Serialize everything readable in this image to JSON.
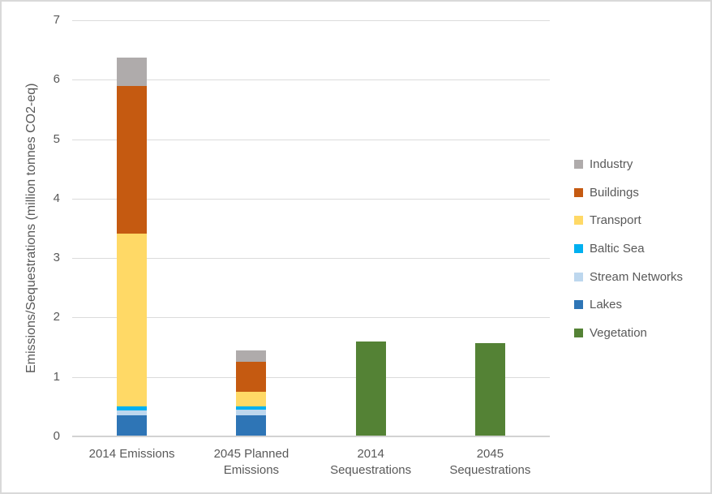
{
  "chart_data": {
    "type": "bar",
    "stacked": true,
    "ylabel": "Emissions/Sequestrations (million tonnes CO2-eq)",
    "ylim": [
      0,
      7
    ],
    "yticks": [
      0,
      1,
      2,
      3,
      4,
      5,
      6,
      7
    ],
    "grid": true,
    "categories": [
      [
        "2014 Emissions"
      ],
      [
        "2045 Planned",
        "Emissions"
      ],
      [
        "2014",
        "Sequestrations"
      ],
      [
        "2045",
        "Sequestrations"
      ]
    ],
    "series": [
      {
        "name": "Vegetation",
        "color": "#548235",
        "values": [
          0,
          0,
          1.6,
          1.57
        ]
      },
      {
        "name": "Lakes",
        "color": "#2E75B6",
        "values": [
          0.36,
          0.36,
          0,
          0
        ]
      },
      {
        "name": "Stream Networks",
        "color": "#BDD7EE",
        "values": [
          0.08,
          0.09,
          0,
          0
        ]
      },
      {
        "name": "Baltic Sea",
        "color": "#00B0F0",
        "values": [
          0.06,
          0.05,
          0,
          0
        ]
      },
      {
        "name": "Transport",
        "color": "#FFD966",
        "values": [
          2.91,
          0.25,
          0,
          0
        ]
      },
      {
        "name": "Buildings",
        "color": "#C55A11",
        "values": [
          2.49,
          0.5,
          0,
          0
        ]
      },
      {
        "name": "Industry",
        "color": "#AFABAB",
        "values": [
          0.47,
          0.19,
          0,
          0
        ]
      }
    ],
    "legend": {
      "position": "right",
      "order": [
        "Industry",
        "Buildings",
        "Transport",
        "Baltic Sea",
        "Stream Networks",
        "Lakes",
        "Vegetation"
      ]
    }
  },
  "colors": {
    "text": "#595959",
    "gridline": "#DBDBDB",
    "axis_line": "#D2D2D2",
    "background": "#FFFFFF",
    "frame_border": "#D9D9D9"
  }
}
